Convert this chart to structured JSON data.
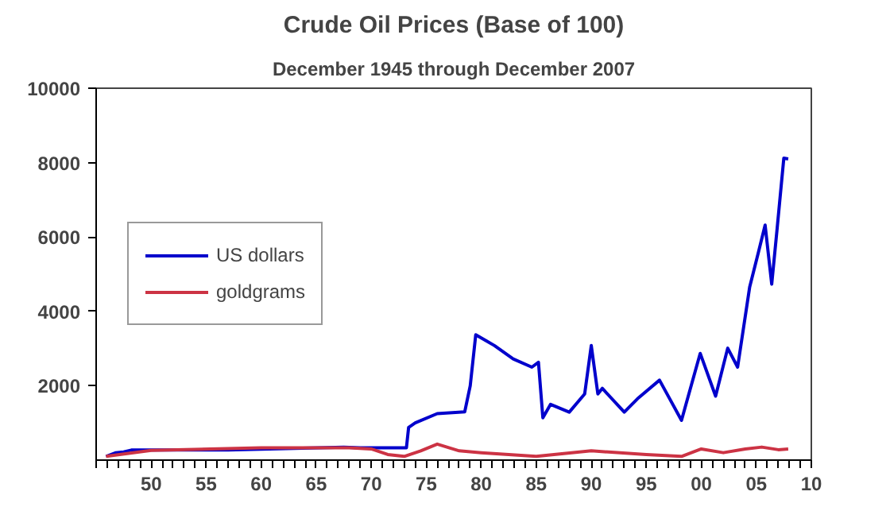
{
  "chart_data": {
    "type": "line",
    "title": "Crude Oil Prices (Base of 100)",
    "subtitle": "December 1945 through December 2007",
    "xlim": [
      1945,
      2010
    ],
    "ylim": [
      0,
      10000
    ],
    "yticks": [
      2000,
      4000,
      6000,
      8000,
      10000
    ],
    "xticks": [
      {
        "value": 1945,
        "label": null
      },
      {
        "value": 1946,
        "label": null
      },
      {
        "value": 1947,
        "label": null
      },
      {
        "value": 1948,
        "label": null
      },
      {
        "value": 1949,
        "label": null
      },
      {
        "value": 1950,
        "label": "50"
      },
      {
        "value": 1951,
        "label": null
      },
      {
        "value": 1952,
        "label": null
      },
      {
        "value": 1953,
        "label": null
      },
      {
        "value": 1954,
        "label": null
      },
      {
        "value": 1955,
        "label": "55"
      },
      {
        "value": 1956,
        "label": null
      },
      {
        "value": 1957,
        "label": null
      },
      {
        "value": 1958,
        "label": null
      },
      {
        "value": 1959,
        "label": null
      },
      {
        "value": 1960,
        "label": "60"
      },
      {
        "value": 1961,
        "label": null
      },
      {
        "value": 1962,
        "label": null
      },
      {
        "value": 1963,
        "label": null
      },
      {
        "value": 1964,
        "label": null
      },
      {
        "value": 1965,
        "label": "65"
      },
      {
        "value": 1966,
        "label": null
      },
      {
        "value": 1967,
        "label": null
      },
      {
        "value": 1968,
        "label": null
      },
      {
        "value": 1969,
        "label": null
      },
      {
        "value": 1970,
        "label": "70"
      },
      {
        "value": 1971,
        "label": null
      },
      {
        "value": 1972,
        "label": null
      },
      {
        "value": 1973,
        "label": null
      },
      {
        "value": 1974,
        "label": null
      },
      {
        "value": 1975,
        "label": "75"
      },
      {
        "value": 1976,
        "label": null
      },
      {
        "value": 1977,
        "label": null
      },
      {
        "value": 1978,
        "label": null
      },
      {
        "value": 1979,
        "label": null
      },
      {
        "value": 1980,
        "label": "80"
      },
      {
        "value": 1981,
        "label": null
      },
      {
        "value": 1982,
        "label": null
      },
      {
        "value": 1983,
        "label": null
      },
      {
        "value": 1984,
        "label": null
      },
      {
        "value": 1985,
        "label": "85"
      },
      {
        "value": 1986,
        "label": null
      },
      {
        "value": 1987,
        "label": null
      },
      {
        "value": 1988,
        "label": null
      },
      {
        "value": 1989,
        "label": null
      },
      {
        "value": 1990,
        "label": "90"
      },
      {
        "value": 1991,
        "label": null
      },
      {
        "value": 1992,
        "label": null
      },
      {
        "value": 1993,
        "label": null
      },
      {
        "value": 1994,
        "label": null
      },
      {
        "value": 1995,
        "label": "95"
      },
      {
        "value": 1996,
        "label": null
      },
      {
        "value": 1997,
        "label": null
      },
      {
        "value": 1998,
        "label": null
      },
      {
        "value": 1999,
        "label": null
      },
      {
        "value": 2000,
        "label": "00"
      },
      {
        "value": 2001,
        "label": null
      },
      {
        "value": 2002,
        "label": null
      },
      {
        "value": 2003,
        "label": null
      },
      {
        "value": 2004,
        "label": null
      },
      {
        "value": 2005,
        "label": "05"
      },
      {
        "value": 2006,
        "label": null
      },
      {
        "value": 2007,
        "label": null
      },
      {
        "value": 2008,
        "label": null
      },
      {
        "value": 2009,
        "label": null
      },
      {
        "value": 2010,
        "label": "10"
      }
    ],
    "grid": false,
    "legend": "left",
    "line_style": "solid",
    "series": [
      {
        "name": "US dollars",
        "color": "#0000cc",
        "x": [
          1945.9,
          1946.8,
          1947.5,
          1948.2,
          1957,
          1967.5,
          1969,
          1973.2,
          1973.4,
          1974,
          1976,
          1978.5,
          1979,
          1979.5,
          1980.5,
          1981.2,
          1982.9,
          1984.6,
          1985.2,
          1985.6,
          1986.3,
          1988,
          1989.4,
          1990,
          1990.6,
          1991,
          1993,
          1994.2,
          1996.2,
          1998.2,
          1999.9,
          2001.3,
          2002.4,
          2003.3,
          2004.4,
          2005.2,
          2005.8,
          2006.4,
          2006.9,
          2007.5,
          2007.9
        ],
        "values": [
          100,
          200,
          220,
          270,
          270,
          345,
          330,
          330,
          880,
          1000,
          1250,
          1300,
          2000,
          3370,
          3200,
          3080,
          2720,
          2500,
          2630,
          1140,
          1500,
          1290,
          1780,
          3080,
          1780,
          1930,
          1290,
          1650,
          2150,
          1070,
          2870,
          1720,
          3010,
          2500,
          4660,
          5600,
          6320,
          4730,
          6250,
          8120,
          8100
        ]
      },
      {
        "name": "goldgrams",
        "color": "#cc3344",
        "x": [
          1945.9,
          1950,
          1960,
          1968,
          1970,
          1971.5,
          1973,
          1974.5,
          1976,
          1978,
          1980,
          1985,
          1990,
          1995,
          1998.2,
          2000,
          2002,
          2004,
          2005.5,
          2007,
          2007.9
        ],
        "values": [
          100,
          260,
          330,
          330,
          300,
          150,
          100,
          250,
          430,
          250,
          200,
          100,
          250,
          150,
          100,
          300,
          200,
          300,
          350,
          280,
          300
        ]
      }
    ]
  }
}
